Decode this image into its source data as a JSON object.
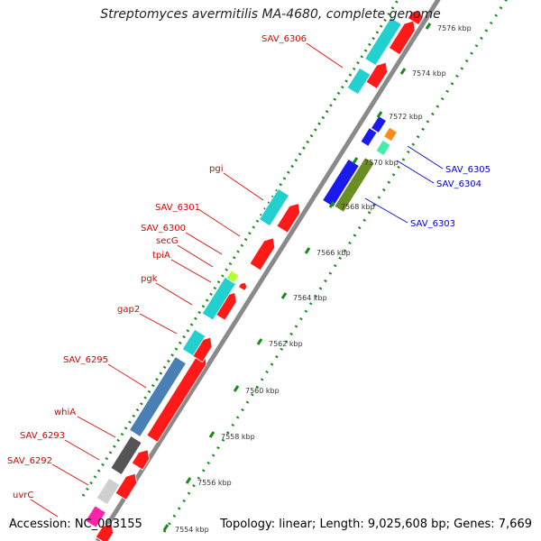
{
  "title": "Streptomyces avermitilis MA-4680, complete genome",
  "footer": {
    "accession": "Accession: NC_003155",
    "summary": "Topology: linear; Length: 9,025,608 bp; Genes: 7,669"
  },
  "ticks": [
    "7554 kbp",
    "7556 kbp",
    "7558 kbp",
    "7560 kbp",
    "7562 kbp",
    "7564 kbp",
    "7566 kbp",
    "7568 kbp",
    "7570 kbp",
    "7572 kbp",
    "7574 kbp",
    "7576 kbp"
  ],
  "gene_labels_left": [
    "SAV_6306",
    "pgi",
    "SAV_6301",
    "SAV_6300",
    "secG",
    "tpiA",
    "pgk",
    "gap2",
    "SAV_6295",
    "whiA",
    "SAV_6293",
    "SAV_6292",
    "uvrC"
  ],
  "gene_labels_right": [
    "SAV_6305",
    "SAV_6304",
    "SAV_6303"
  ],
  "colors": {
    "backbone": "#8a8a8a",
    "left_label": "#dd0000",
    "right_label": "#0000cc",
    "gene_red": "#ff1a1a",
    "cyan": "#22d0d0",
    "blue": "#1a1aee",
    "steel": "#4a7fb5",
    "dark_gray": "#555555",
    "light_gray": "#cfcfcf",
    "pink": "#ff22aa",
    "orange": "#ff8c1a",
    "aquamarine": "#44eeaa",
    "olive": "#6b8e23",
    "lime": "#b4ff33",
    "dot_green": "#1a8a1a"
  }
}
